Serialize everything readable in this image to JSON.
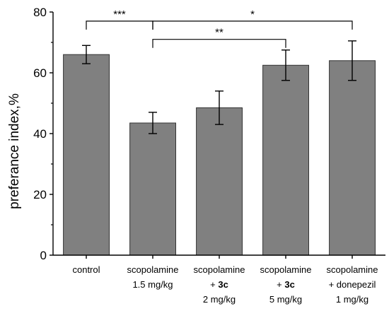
{
  "chart_data": {
    "type": "bar",
    "title": "",
    "xlabel": "",
    "ylabel": "preferance index,%",
    "ylim": [
      0,
      80
    ],
    "yticks": [
      "0",
      "20",
      "40",
      "60",
      "80"
    ],
    "grid": false,
    "legend": "none",
    "bar_color": "#808080",
    "categories": [
      {
        "lines": [
          [
            {
              "t": "control",
              "b": false
            }
          ]
        ]
      },
      {
        "lines": [
          [
            {
              "t": "scopolamine",
              "b": false
            }
          ],
          [
            {
              "t": "1.5 mg/kg",
              "b": false
            }
          ]
        ]
      },
      {
        "lines": [
          [
            {
              "t": "scopolamine",
              "b": false
            }
          ],
          [
            {
              "t": "+ ",
              "b": false
            },
            {
              "t": "3c",
              "b": true
            }
          ],
          [
            {
              "t": "2 mg/kg",
              "b": false
            }
          ]
        ]
      },
      {
        "lines": [
          [
            {
              "t": "scopolamine",
              "b": false
            }
          ],
          [
            {
              "t": "+ ",
              "b": false
            },
            {
              "t": "3c",
              "b": true
            }
          ],
          [
            {
              "t": "5 mg/kg",
              "b": false
            }
          ]
        ]
      },
      {
        "lines": [
          [
            {
              "t": "scopolamine",
              "b": false
            }
          ],
          [
            {
              "t": "+ donepezil",
              "b": false
            }
          ],
          [
            {
              "t": "1 mg/kg",
              "b": false
            }
          ]
        ]
      }
    ],
    "values": [
      66,
      43.5,
      48.5,
      62.5,
      64
    ],
    "errors": [
      {
        "low": 63,
        "high": 69
      },
      {
        "low": 40,
        "high": 47
      },
      {
        "low": 43,
        "high": 54
      },
      {
        "low": 57.5,
        "high": 67.5
      },
      {
        "low": 57.5,
        "high": 70.5
      }
    ],
    "significance": [
      {
        "from": 0,
        "to": 1,
        "label": "***",
        "level": 77
      },
      {
        "from": 1,
        "to": 4,
        "label": "*",
        "level": 77
      },
      {
        "from": 1,
        "to": 3,
        "label": "**",
        "level": 71
      }
    ]
  }
}
